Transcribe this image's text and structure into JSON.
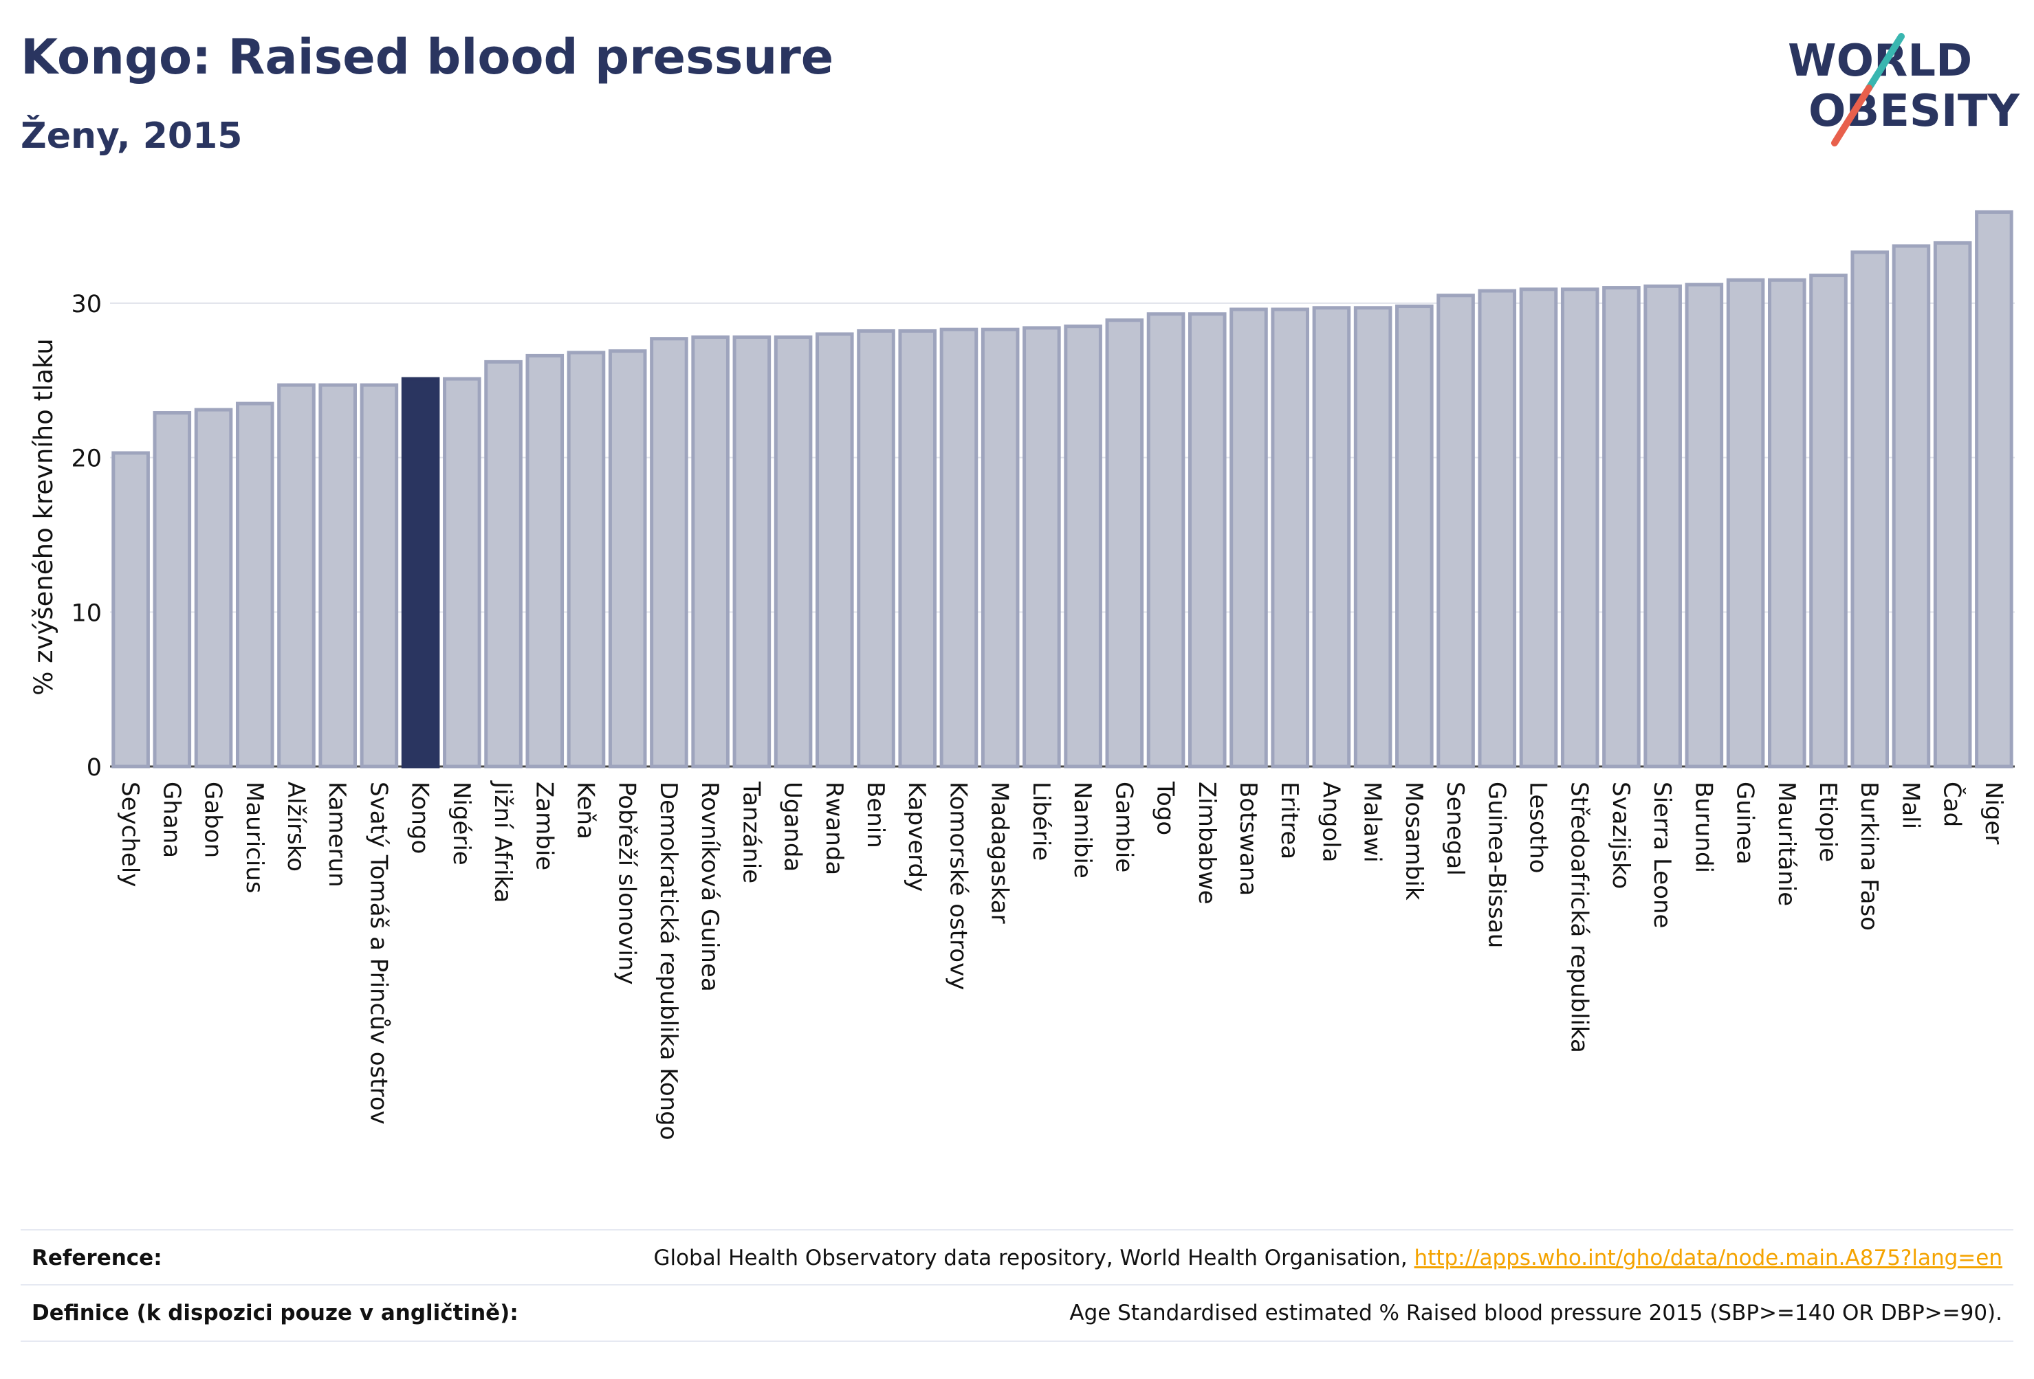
{
  "header": {
    "title": "Kongo: Raised blood pressure",
    "subtitle": "Ženy, 2015"
  },
  "logo": {
    "line1": "WORLD",
    "line2": "OBESITY",
    "text_color": "#2a3560",
    "slash_colors": [
      "#39b6b0",
      "#e8604c"
    ]
  },
  "colors": {
    "bar_fill": "#bfc3d1",
    "bar_stroke": "#9ea4bd",
    "highlight_fill": "#2a3560",
    "grid": "#e3e5ec",
    "axis_text": "#111111"
  },
  "chart_data": {
    "type": "bar",
    "ylabel": "% zvýšeného krevního tlaku",
    "ylim": [
      0,
      36.5
    ],
    "yticks": [
      0,
      10,
      20,
      30
    ],
    "highlight": "Kongo",
    "grid": true,
    "categories": [
      "Seychely",
      "Ghana",
      "Gabon",
      "Mauricius",
      "Alžírsko",
      "Kamerun",
      "Svatý Tomáš a Princův ostrov",
      "Kongo",
      "Nigérie",
      "Jižní Afrika",
      "Zambie",
      "Keňa",
      "Pobřeží slonoviny",
      "Demokratická republika Kongo",
      "Rovníková Guinea",
      "Tanzánie",
      "Uganda",
      "Rwanda",
      "Benin",
      "Kapverdy",
      "Komorské ostrovy",
      "Madagaskar",
      "Libérie",
      "Namibie",
      "Gambie",
      "Togo",
      "Zimbabwe",
      "Botswana",
      "Eritrea",
      "Angola",
      "Malawi",
      "Mosambik",
      "Senegal",
      "Guinea-Bissau",
      "Lesotho",
      "Středoafrická republika",
      "Svazijsko",
      "Sierra Leone",
      "Burundi",
      "Guinea",
      "Mauritánie",
      "Etiopie",
      "Burkina Faso",
      "Mali",
      "Čad",
      "Niger"
    ],
    "values": [
      20.3,
      22.9,
      23.1,
      23.5,
      24.7,
      24.7,
      24.7,
      25.1,
      25.1,
      26.2,
      26.6,
      26.8,
      26.9,
      27.7,
      27.8,
      27.8,
      27.8,
      28.0,
      28.2,
      28.2,
      28.3,
      28.3,
      28.4,
      28.5,
      28.9,
      29.3,
      29.3,
      29.6,
      29.6,
      29.7,
      29.7,
      29.8,
      30.5,
      30.8,
      30.9,
      30.9,
      31.0,
      31.1,
      31.2,
      31.5,
      31.5,
      31.8,
      33.3,
      33.7,
      33.9,
      35.9
    ]
  },
  "references": {
    "reference_label": "Reference:",
    "reference_text": "Global Health Observatory data repository, World Health Organisation, ",
    "reference_link": "http://apps.who.int/gho/data/node.main.A875?lang=en",
    "definition_label": "Definice (k dispozici pouze v angličtině):",
    "definition_text": "Age Standardised estimated % Raised blood pressure 2015 (SBP>=140 OR DBP>=90)."
  }
}
